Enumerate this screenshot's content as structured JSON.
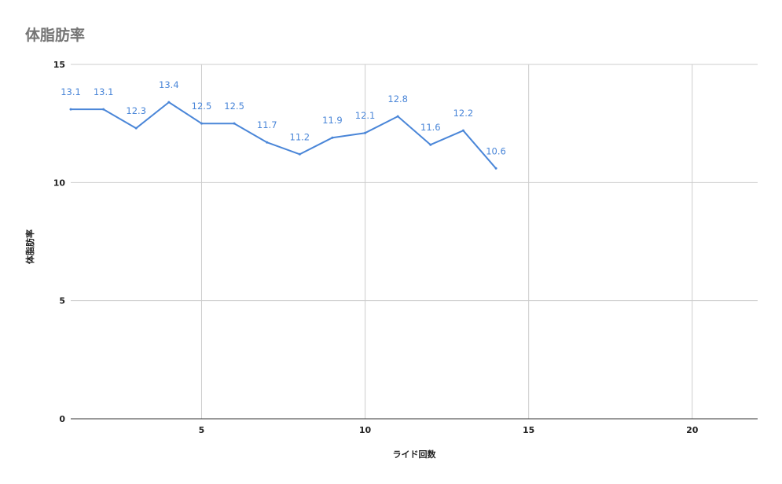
{
  "chart_data": {
    "type": "line",
    "title": "体脂肪率",
    "xlabel": "ライド回数",
    "ylabel": "体脂肪率",
    "x": [
      1,
      2,
      3,
      4,
      5,
      6,
      7,
      8,
      9,
      10,
      11,
      12,
      13,
      14
    ],
    "series": [
      {
        "values": [
          13.1,
          13.1,
          12.3,
          13.4,
          12.5,
          12.5,
          11.7,
          11.2,
          11.9,
          12.1,
          12.8,
          11.6,
          12.2,
          10.6
        ],
        "labels": [
          "13.1",
          "13.1",
          "12.3",
          "13.4",
          "12.5",
          "12.5",
          "11.7",
          "11.2",
          "11.9",
          "12.1",
          "12.8",
          "11.6",
          "12.2",
          "10.6"
        ]
      }
    ],
    "xlim": [
      1,
      22
    ],
    "ylim": [
      0,
      15
    ],
    "xticks": [
      5,
      10,
      15,
      20
    ],
    "xtick_labels": [
      "5",
      "10",
      "15",
      "20"
    ],
    "yticks": [
      0,
      5,
      10,
      15
    ],
    "ytick_labels": [
      "0",
      "5",
      "10",
      "15"
    ],
    "grid": true,
    "legend": "none",
    "colors": {
      "line": "#4a86d8",
      "grid": "#cccccc",
      "title": "#757575"
    }
  }
}
